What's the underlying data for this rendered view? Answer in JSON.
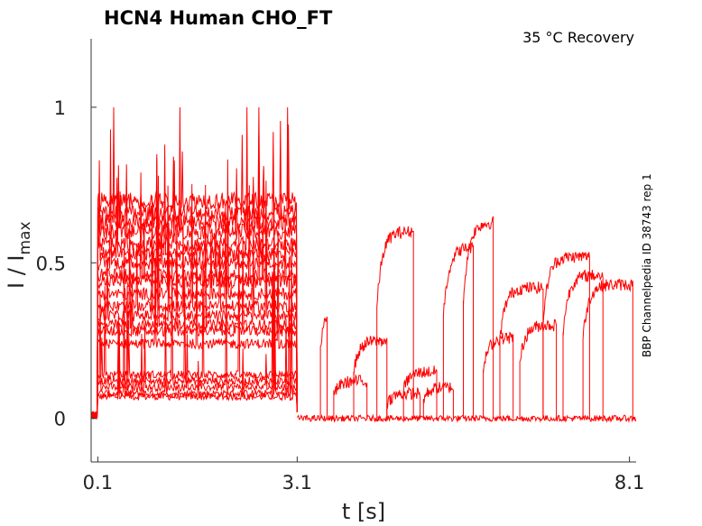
{
  "chart_data": {
    "type": "line",
    "title": "HCN4  Human  CHO_FT",
    "condition": "35 °C  Recovery",
    "side_label": "BBP Channelpedia ID 38743 rep 1",
    "xlabel": "t [s]",
    "ylabel_main": "I / I",
    "ylabel_sub": "max",
    "xlim": [
      0.0,
      8.2
    ],
    "ylim": [
      -0.14,
      1.22
    ],
    "xticks": [
      {
        "value": 0.1,
        "label": "0.1"
      },
      {
        "value": 3.1,
        "label": "3.1"
      },
      {
        "value": 8.1,
        "label": "8.1"
      }
    ],
    "yticks": [
      {
        "value": 0,
        "label": "0"
      },
      {
        "value": 0.5,
        "label": "0.5"
      },
      {
        "value": 1,
        "label": "1"
      }
    ],
    "series_color": "#ff0000",
    "pre_pulse_levels": [
      0.07,
      0.08,
      0.1,
      0.12,
      0.14,
      0.24,
      0.28,
      0.3,
      0.33,
      0.36,
      0.4,
      0.44,
      0.46,
      0.5,
      0.53,
      0.56,
      0.6,
      0.63,
      0.66,
      0.7
    ],
    "recovery_steps": [
      {
        "t_start": 3.45,
        "t_end": 3.55,
        "level": 0.38
      },
      {
        "t_start": 3.65,
        "t_end": 4.15,
        "level": 0.12
      },
      {
        "t_start": 3.95,
        "t_end": 4.45,
        "level": 0.25
      },
      {
        "t_start": 4.3,
        "t_end": 4.85,
        "level": 0.6
      },
      {
        "t_start": 4.45,
        "t_end": 4.95,
        "level": 0.08
      },
      {
        "t_start": 4.7,
        "t_end": 5.2,
        "level": 0.15
      },
      {
        "t_start": 5.0,
        "t_end": 5.45,
        "level": 0.1
      },
      {
        "t_start": 5.3,
        "t_end": 5.75,
        "level": 0.55
      },
      {
        "t_start": 5.6,
        "t_end": 6.05,
        "level": 0.63
      },
      {
        "t_start": 5.9,
        "t_end": 6.35,
        "level": 0.26
      },
      {
        "t_start": 6.15,
        "t_end": 6.8,
        "level": 0.42
      },
      {
        "t_start": 6.45,
        "t_end": 7.0,
        "level": 0.3
      },
      {
        "t_start": 6.8,
        "t_end": 7.5,
        "level": 0.52
      },
      {
        "t_start": 7.1,
        "t_end": 7.7,
        "level": 0.46
      },
      {
        "t_start": 7.4,
        "t_end": 8.15,
        "level": 0.43
      }
    ]
  }
}
